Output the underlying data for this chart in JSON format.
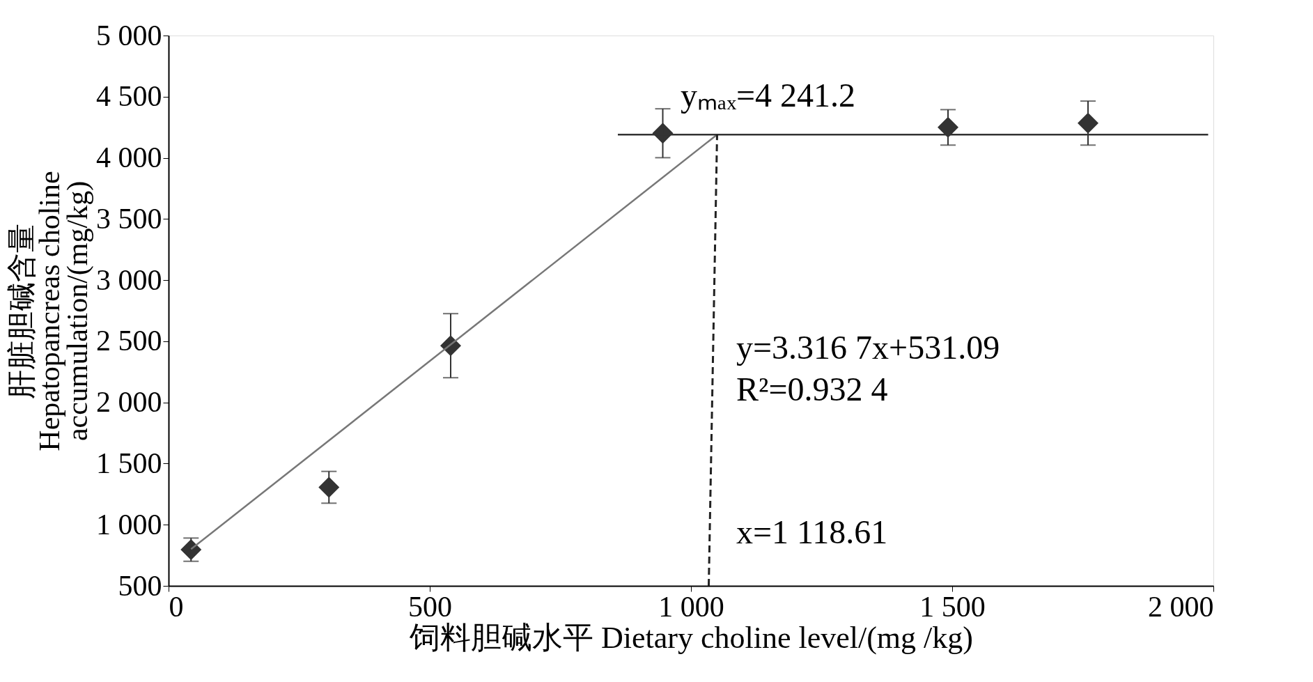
{
  "chart_data": {
    "type": "scatter",
    "xlabel": "饲料胆碱水平  Dietary choline level/(mg /kg)",
    "ylabel": "肝脏胆碱含量\nHepatopancreas choline\naccumulation/(mg/kg)",
    "xlim": [
      0,
      2000
    ],
    "ylim": [
      500,
      5000
    ],
    "xticks": [
      0,
      500,
      {
        "value": 1000,
        "label": "1 000"
      },
      {
        "value": 1500,
        "label": "1 500"
      },
      {
        "value": 2000,
        "label": "2 000"
      }
    ],
    "yticks": [
      500,
      {
        "value": 1000,
        "label": "1 000"
      },
      {
        "value": 1500,
        "label": "1 500"
      },
      {
        "value": 2000,
        "label": "2 000"
      },
      {
        "value": 2500,
        "label": "2 500"
      },
      {
        "value": 3000,
        "label": "3 000"
      },
      {
        "value": 3500,
        "label": "3 500"
      },
      {
        "value": 4000,
        "label": "4 000"
      },
      {
        "value": 4500,
        "label": "4 500"
      },
      {
        "value": 5000,
        "label": "5 000"
      }
    ],
    "grid": false,
    "series": [
      {
        "marker": "diamond",
        "color": "#333333",
        "x": [
          43,
          307,
          540,
          946,
          1492,
          1760
        ],
        "values": [
          796,
          1306,
          2464,
          4201,
          4249,
          4284
        ],
        "errors": [
          95,
          130,
          262,
          200,
          145,
          180
        ]
      },
      {
        "type": "line",
        "color": "#777777",
        "line_style": "solid",
        "x": [
          43,
          1050
        ],
        "values": [
          800,
          4190
        ]
      },
      {
        "type": "line",
        "color": "#333333",
        "line_style": "solid",
        "x": [
          860,
          1990
        ],
        "values": [
          4190,
          4190
        ]
      },
      {
        "type": "line",
        "color": "#222222",
        "line_style": "dashed",
        "x": [
          1034,
          1050
        ],
        "values": [
          500,
          4190
        ]
      }
    ],
    "annotations": [
      "yₘₐₓ=4 241.2",
      "y=3.316 7x+531.09",
      "R²=0.932 4",
      "x=1 118.61"
    ]
  }
}
